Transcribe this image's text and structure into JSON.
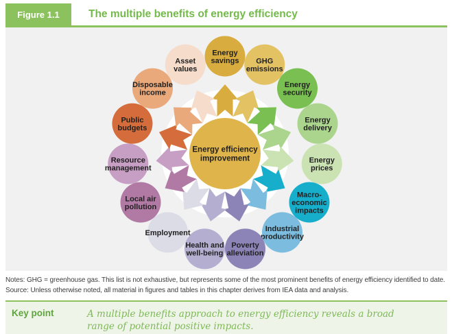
{
  "header": {
    "figure_label": "Figure 1.1",
    "title": "The multiple benefits of energy efficiency"
  },
  "diagram": {
    "center": {
      "label": "Energy efficiency improvement",
      "lines": [
        "Energy efficiency",
        "improvement"
      ],
      "color": "#dfb44a"
    },
    "wheel_bg_color": "#ffffff",
    "label_color": "#1f1f1f",
    "benefits": [
      {
        "id": "energy-savings",
        "label": "Energy savings",
        "lines": [
          "Energy",
          "savings"
        ],
        "color": "#d8ac3e"
      },
      {
        "id": "ghg-emissions",
        "label": "GHG emissions",
        "lines": [
          "GHG",
          "emissions"
        ],
        "color": "#e3c264"
      },
      {
        "id": "energy-security",
        "label": "Energy security",
        "lines": [
          "Energy",
          "security"
        ],
        "color": "#79bf51"
      },
      {
        "id": "energy-delivery",
        "label": "Energy delivery",
        "lines": [
          "Energy",
          "delivery"
        ],
        "color": "#abd48d"
      },
      {
        "id": "energy-prices",
        "label": "Energy prices",
        "lines": [
          "Energy",
          "prices"
        ],
        "color": "#cbe2b3"
      },
      {
        "id": "macro-economic-impacts",
        "label": "Macro-economic impacts",
        "lines": [
          "Macro-",
          "economic",
          "impacts"
        ],
        "color": "#16aecb"
      },
      {
        "id": "industrial-productivity",
        "label": "Industrial productivity",
        "lines": [
          "Industrial",
          "productivity"
        ],
        "color": "#7bbcdf"
      },
      {
        "id": "poverty-alleviation",
        "label": "Poverty alleviation",
        "lines": [
          "Poverty",
          "alleviation"
        ],
        "color": "#8c84b7"
      },
      {
        "id": "health-and-well-being",
        "label": "Health and well-being",
        "lines": [
          "Health and",
          "well-being"
        ],
        "color": "#b4afd1"
      },
      {
        "id": "employment",
        "label": "Employment",
        "lines": [
          "Employment"
        ],
        "color": "#dcdce6"
      },
      {
        "id": "local-air-pollution",
        "label": "Local air pollution",
        "lines": [
          "Local air",
          "pollution"
        ],
        "color": "#b17aa5"
      },
      {
        "id": "resource-management",
        "label": "Resource management",
        "lines": [
          "Resource",
          "management"
        ],
        "color": "#c89fc4"
      },
      {
        "id": "public-budgets",
        "label": "Public budgets",
        "lines": [
          "Public",
          "budgets"
        ],
        "color": "#d46d3b"
      },
      {
        "id": "disposable-income",
        "label": "Disposable income",
        "lines": [
          "Disposable",
          "income"
        ],
        "color": "#e9a97a"
      },
      {
        "id": "asset-values",
        "label": "Asset values",
        "lines": [
          "Asset",
          "values"
        ],
        "color": "#f6dcca"
      }
    ]
  },
  "notes": {
    "line1": "Notes: GHG = greenhouse gas. This list is not exhaustive, but represents some of the most prominent benefits of energy efficiency identified to date.",
    "line2": "Source: Unless otherwise noted, all material in figures and tables in this chapter derives from IEA data and analysis."
  },
  "key_point": {
    "label": "Key point",
    "text": "A multiple benefits approach to energy efficiency reveals a broad range of potential positive impacts."
  },
  "colors": {
    "accent_green": "#8cc25e",
    "title_green": "#74ba4a",
    "figure_bg": "#f1f1f2",
    "keypoint_bg": "#eef5e8",
    "keypoint_label_green": "#5ea53c",
    "keypoint_text_green": "#7fb857",
    "notes_text": "#3c3c3c"
  }
}
